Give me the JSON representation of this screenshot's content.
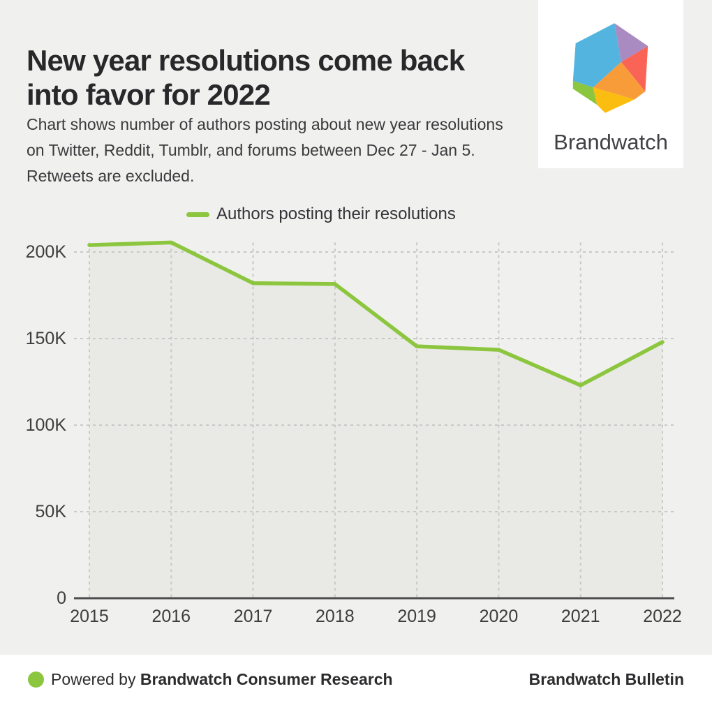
{
  "header": {
    "title_lines": [
      "New year resolutions come back",
      "into favor for 2022"
    ],
    "subtitle_lines": [
      "Chart shows number of authors posting about new year resolutions",
      "on Twitter, Reddit, Tumblr, and forums between Dec 27 - Jan 5.",
      "Retweets are excluded."
    ]
  },
  "logo": {
    "brand_name": "Brandwatch",
    "colors": {
      "blue": "#53b4e0",
      "purple": "#a98bc2",
      "coral": "#f96456",
      "orange": "#f89c3a",
      "yellow": "#fbbd0f",
      "green": "#8cc63e"
    }
  },
  "legend": {
    "label": "Authors posting their resolutions",
    "swatch_color": "#8cc63e"
  },
  "chart_data": {
    "type": "area",
    "title": "New year resolutions come back into favor for 2022",
    "categories": [
      "2015",
      "2016",
      "2017",
      "2018",
      "2019",
      "2020",
      "2021",
      "2022"
    ],
    "series": [
      {
        "name": "Authors posting their resolutions",
        "values": [
          204000,
          205500,
          182000,
          181500,
          145500,
          143500,
          123000,
          148000
        ]
      }
    ],
    "xlabel": "",
    "ylabel": "",
    "ylim": [
      0,
      205500
    ],
    "y_ticks": [
      {
        "value": 0,
        "label": "0"
      },
      {
        "value": 50000,
        "label": "50K"
      },
      {
        "value": 100000,
        "label": "100K"
      },
      {
        "value": 150000,
        "label": "150K"
      },
      {
        "value": 200000,
        "label": "200K"
      }
    ],
    "grid": "dashed",
    "legend_position": "top",
    "line_color": "#8cc63e",
    "area_fill": "#e9e9e6",
    "grid_color": "#c8c8c6",
    "axis_color": "#4d4d4d"
  },
  "footer": {
    "powered_by_prefix": "Powered by",
    "powered_by_brand": "Brandwatch Consumer Research",
    "right_text": "Brandwatch Bulletin",
    "dot_color": "#8cc63e"
  }
}
